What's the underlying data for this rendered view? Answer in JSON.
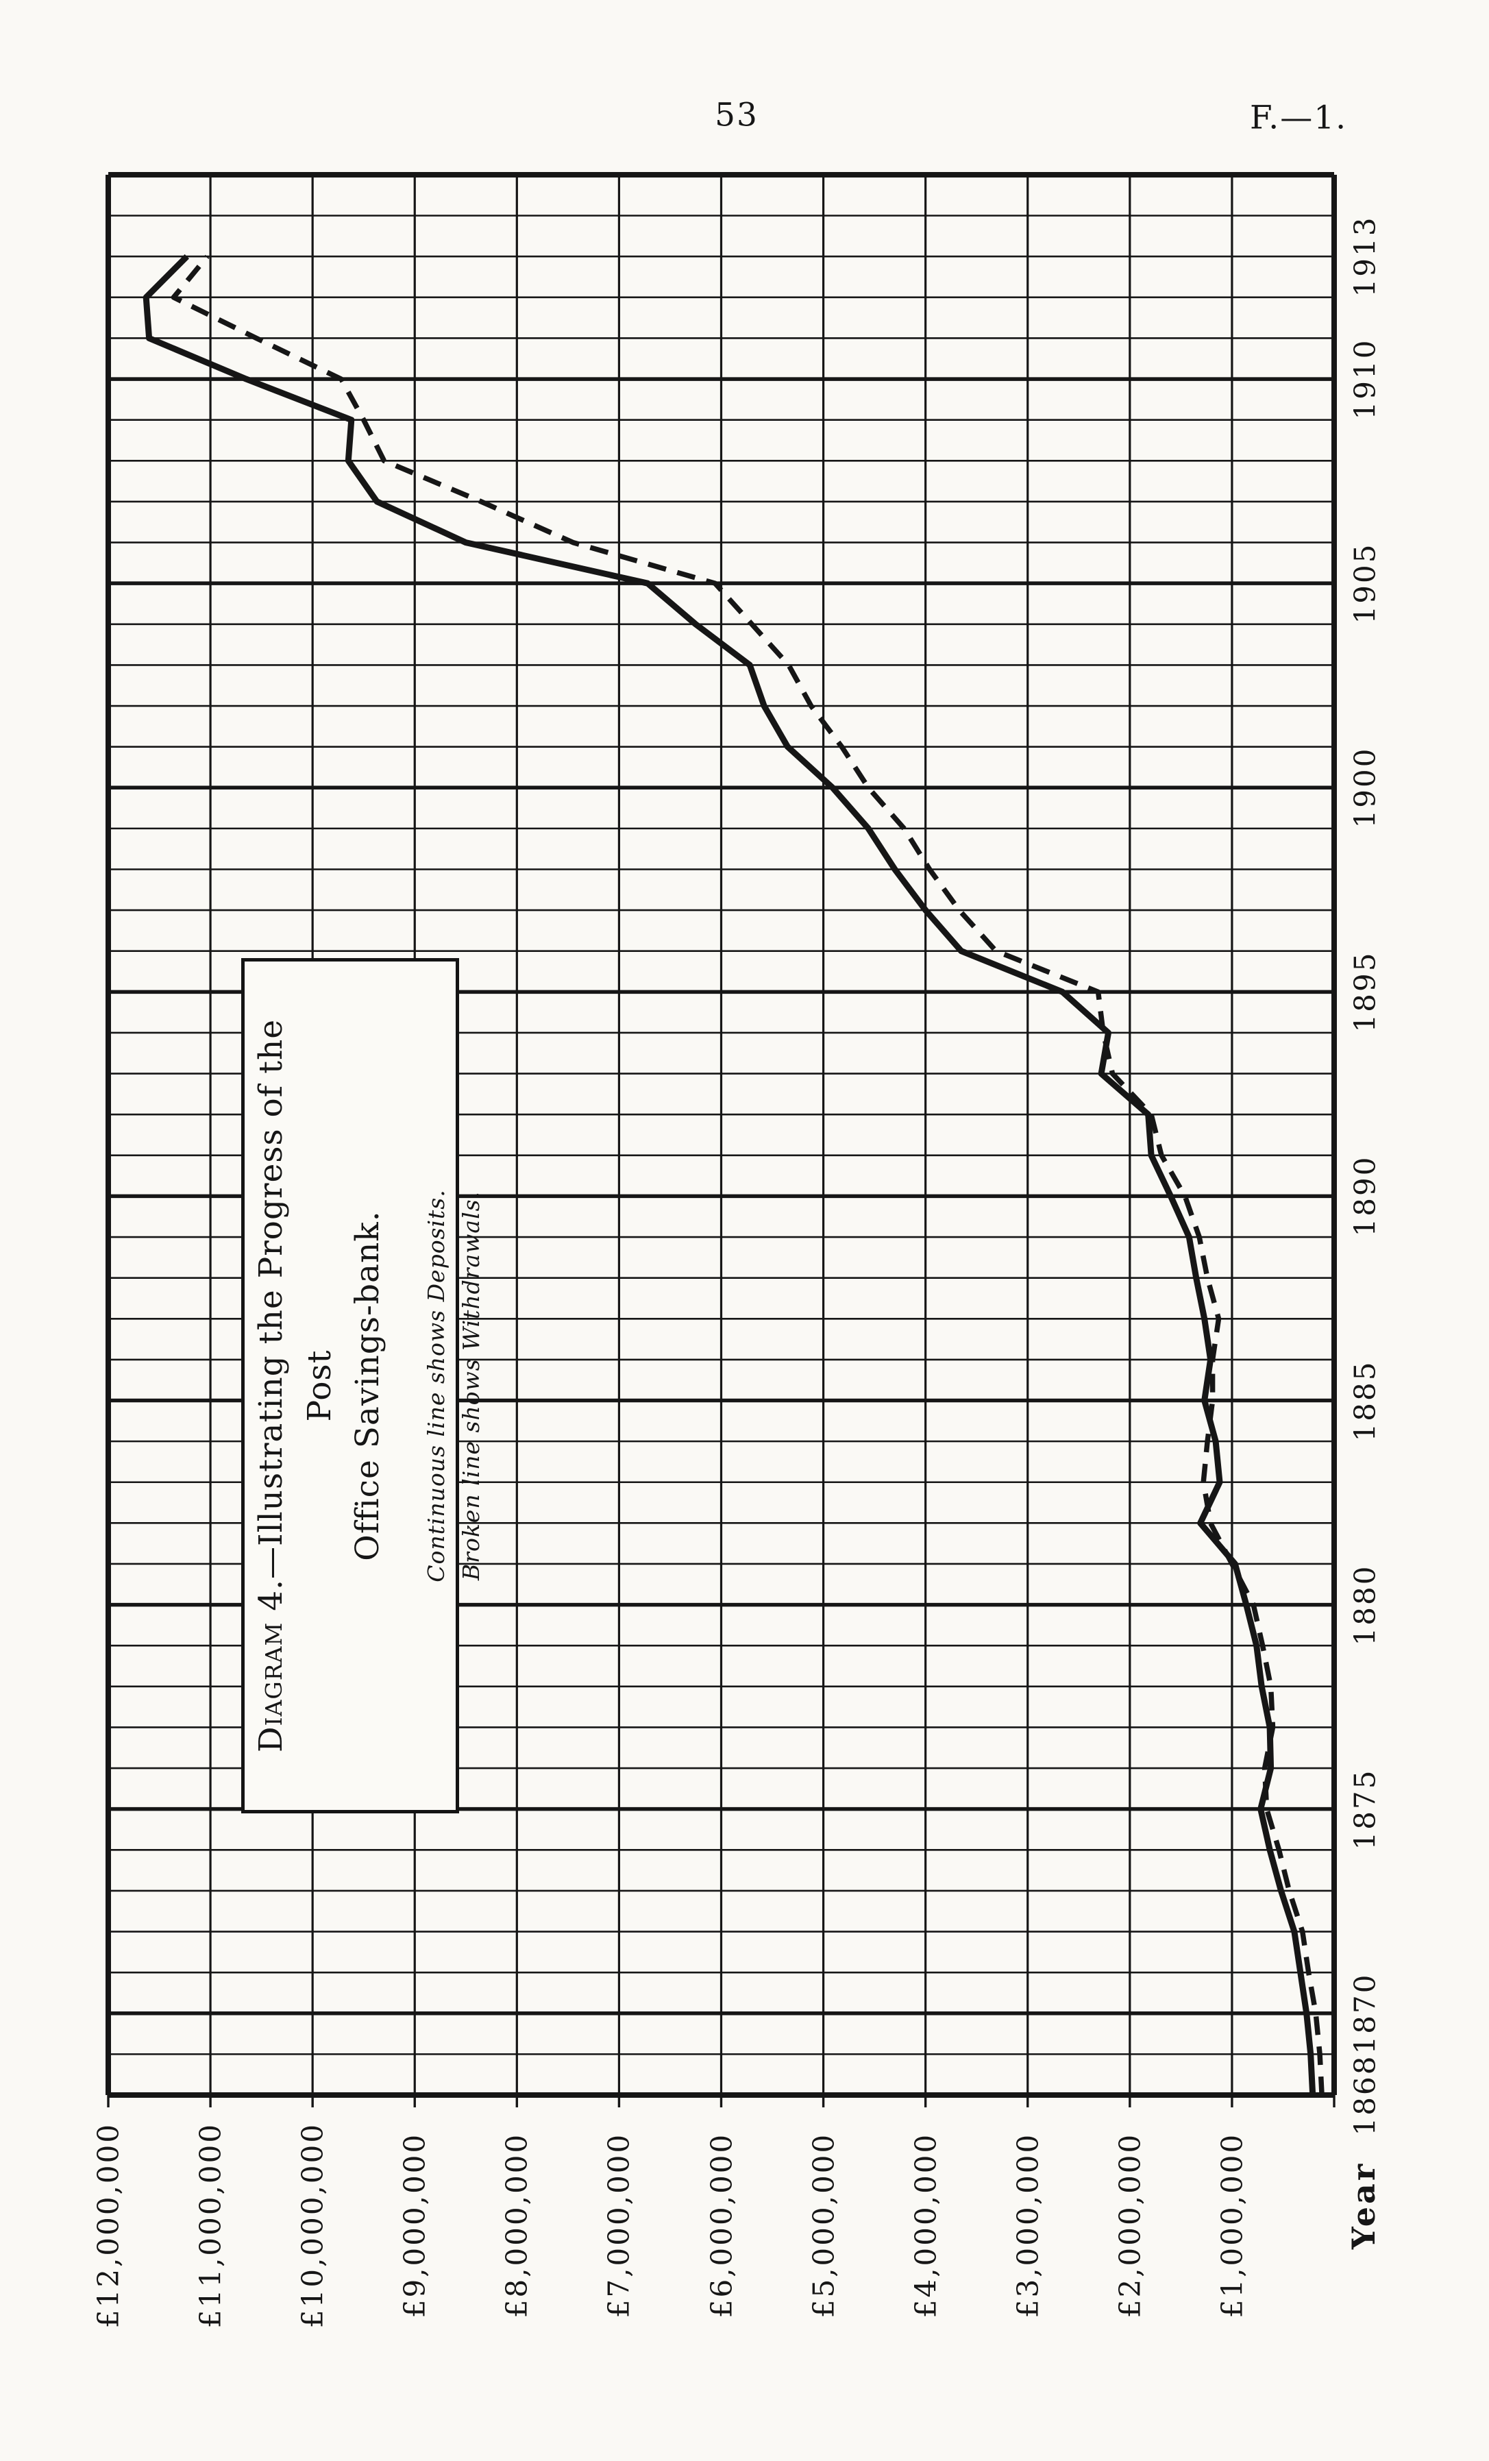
{
  "header": {
    "page_number": "53",
    "doc_ref": "F.—1."
  },
  "title_box": {
    "title_word": "Diagram",
    "title_line1_rest": " 4.—Illustrating the Progress of the Post",
    "title_line2": "Office Savings-bank.",
    "legend_deposits": "Continuous line shows Deposits.",
    "legend_withdrawals": "Broken line shows Withdrawals."
  },
  "x_axis": {
    "label": "Year",
    "ticks": [
      1868,
      1870,
      1875,
      1880,
      1885,
      1890,
      1895,
      1900,
      1905,
      1910,
      1913
    ]
  },
  "y_axis": {
    "tick_labels": [
      "£12,000,000",
      "£11,000,000",
      "£10,000,000",
      "£9,000,000",
      "£8,000,000",
      "£7,000,000",
      "£6,000,000",
      "£5,000,000",
      "£4,000,000",
      "£3,000,000",
      "£2,000,000",
      "£1,000,000"
    ],
    "tick_values_millions": [
      12,
      11,
      10,
      9,
      8,
      7,
      6,
      5,
      4,
      3,
      2,
      1
    ]
  },
  "chart_data": {
    "type": "line",
    "title": "Diagram 4.—Illustrating the Progress of the Post Office Savings-bank.",
    "orientation": "years run vertically upward; money runs horizontally leftward (page printed rotated 90°)",
    "xlabel": "Year",
    "ylabel": "£",
    "x_drawn_range": [
      1868,
      1915
    ],
    "x_data_range": [
      1868,
      1913
    ],
    "ylim_millions": [
      0,
      12
    ],
    "grid": "on, 1 line per year (thick every 5th year), 1 line per £1,000,000",
    "legend_position": "boxed panel overlapping grid",
    "years": [
      1868,
      1869,
      1870,
      1871,
      1872,
      1873,
      1874,
      1875,
      1876,
      1877,
      1878,
      1879,
      1880,
      1881,
      1882,
      1883,
      1884,
      1885,
      1886,
      1887,
      1888,
      1889,
      1890,
      1891,
      1892,
      1893,
      1894,
      1895,
      1896,
      1897,
      1898,
      1899,
      1900,
      1901,
      1902,
      1903,
      1904,
      1905,
      1906,
      1907,
      1908,
      1909,
      1910,
      1911,
      1912,
      1913
    ],
    "series": [
      {
        "name": "Deposits",
        "style": "solid",
        "values_millions": [
          0.21,
          0.23,
          0.27,
          0.33,
          0.39,
          0.52,
          0.63,
          0.72,
          0.62,
          0.63,
          0.71,
          0.76,
          0.86,
          0.97,
          1.31,
          1.12,
          1.16,
          1.27,
          1.21,
          1.27,
          1.35,
          1.42,
          1.6,
          1.79,
          1.82,
          2.28,
          2.21,
          2.66,
          3.65,
          4.0,
          4.3,
          4.56,
          4.91,
          5.35,
          5.58,
          5.72,
          6.25,
          6.72,
          8.5,
          9.37,
          9.65,
          9.62,
          10.65,
          11.6,
          11.63,
          11.23
        ]
      },
      {
        "name": "Withdrawals",
        "style": "dashed",
        "values_millions": [
          0.12,
          0.14,
          0.18,
          0.25,
          0.31,
          0.44,
          0.54,
          0.66,
          0.68,
          0.6,
          0.62,
          0.7,
          0.79,
          1.0,
          1.21,
          1.28,
          1.24,
          1.19,
          1.19,
          1.13,
          1.24,
          1.32,
          1.46,
          1.69,
          1.79,
          2.17,
          2.26,
          2.31,
          3.31,
          3.67,
          3.96,
          4.21,
          4.56,
          4.82,
          5.12,
          5.34,
          5.7,
          6.06,
          7.45,
          8.35,
          9.3,
          9.5,
          9.72,
          10.55,
          11.36,
          11.03
        ]
      }
    ],
    "ink_color": "#161616"
  }
}
